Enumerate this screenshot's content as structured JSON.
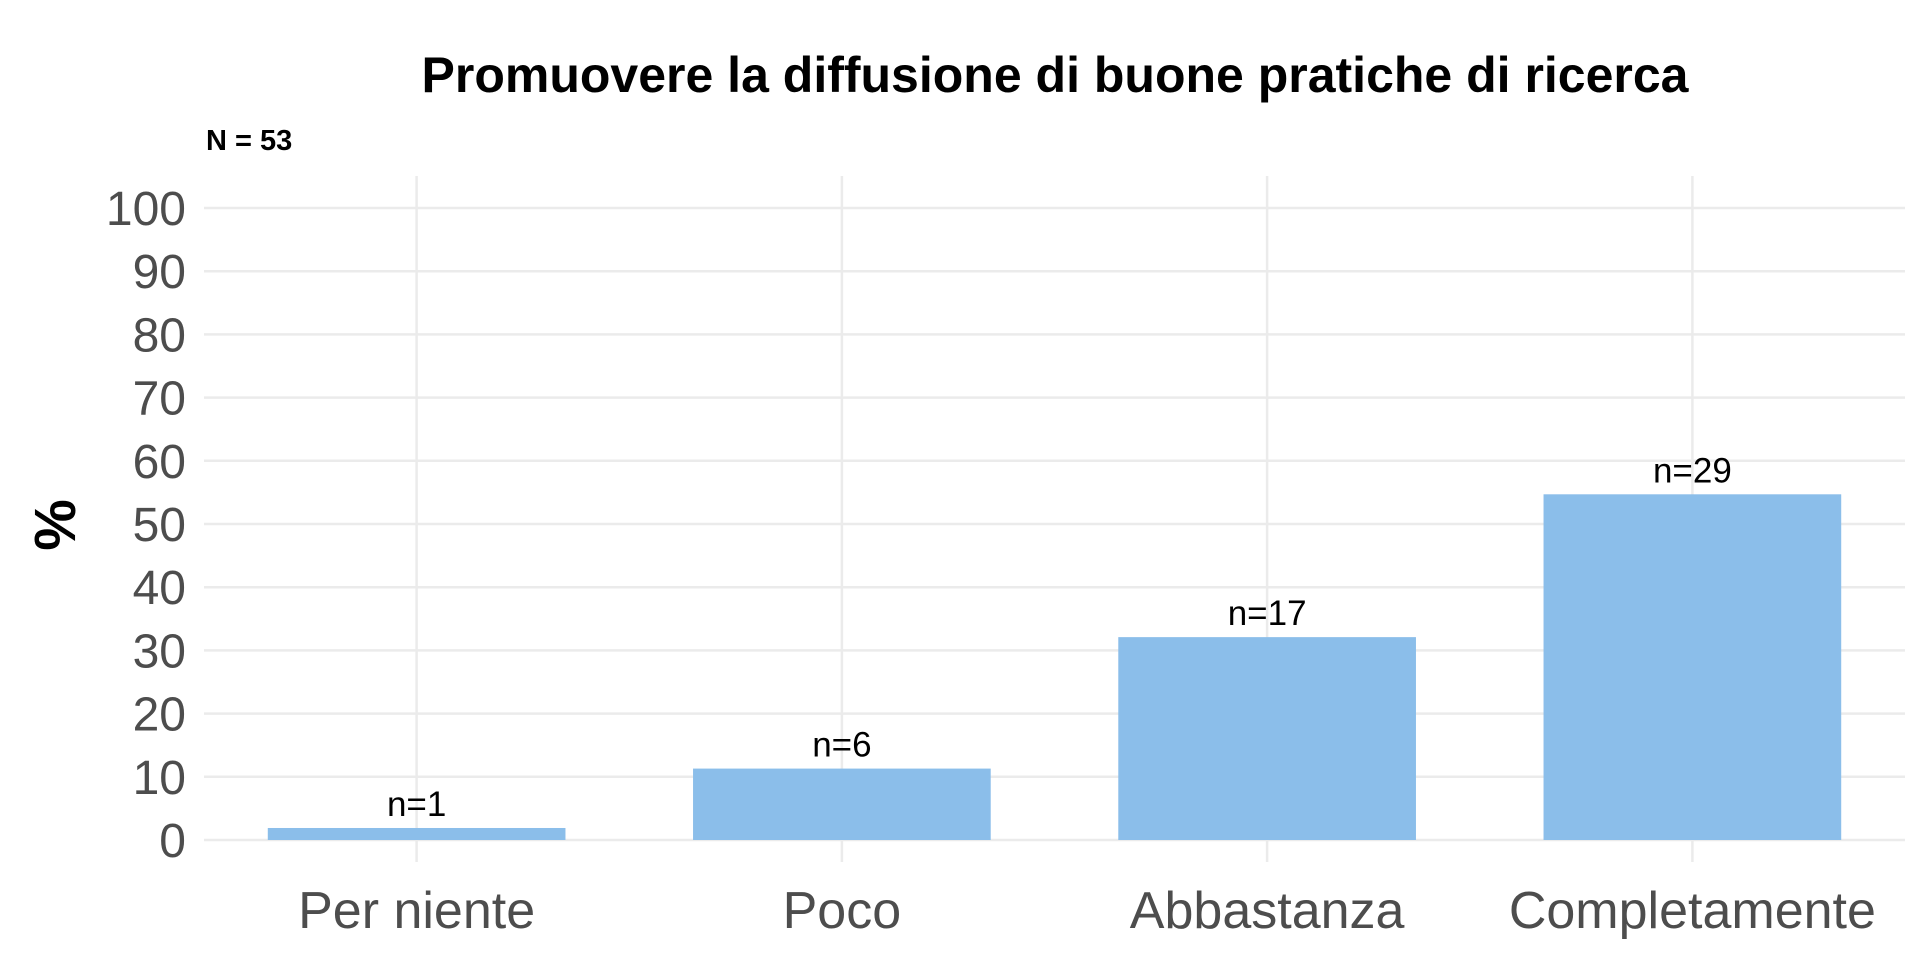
{
  "chart_data": {
    "type": "bar",
    "title": "Promuovere la diffusione di buone pratiche di ricerca",
    "subtitle": "N = 53",
    "xlabel": "",
    "ylabel": "%",
    "categories": [
      "Per niente",
      "Poco",
      "Abbastanza",
      "Completamente"
    ],
    "values": [
      1.9,
      11.3,
      32.1,
      54.7
    ],
    "data_labels": [
      "n=1",
      "n=6",
      "n=17",
      "n=29"
    ],
    "ylim": [
      0,
      100
    ],
    "yticks": [
      "0",
      "10",
      "20",
      "30",
      "40",
      "50",
      "60",
      "70",
      "80",
      "90",
      "100"
    ],
    "grid": true,
    "bar_color": "#8bbeea"
  }
}
